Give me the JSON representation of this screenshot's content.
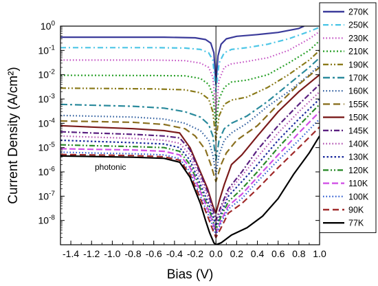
{
  "chart_data": {
    "type": "line",
    "title": "",
    "xlabel": "Bias (V)",
    "ylabel": "Current Density (A/cm²)",
    "xlim": [
      -1.5,
      1.0
    ],
    "ylim_log10": [
      -9,
      0
    ],
    "yscale": "log",
    "grid": false,
    "legend_placement": "right-outside",
    "x_ticks": [
      "-1.4",
      "-1.2",
      "-1.0",
      "-0.8",
      "-0.6",
      "-0.4",
      "-0.2",
      "0.0",
      "0.2",
      "0.4",
      "0.6",
      "0.8",
      "1.0"
    ],
    "annotation": "photonic",
    "series": [
      {
        "name": "270K",
        "color": "#3a3a9a",
        "dash": "",
        "points": [
          [
            -1.5,
            0.35
          ],
          [
            -0.5,
            0.35
          ],
          [
            -0.2,
            0.33
          ],
          [
            -0.1,
            0.28
          ],
          [
            -0.05,
            0.2
          ],
          [
            -0.02,
            0.08
          ],
          [
            0.0,
            0.004
          ],
          [
            0.02,
            0.06
          ],
          [
            0.05,
            0.18
          ],
          [
            0.1,
            0.3
          ],
          [
            0.2,
            0.38
          ],
          [
            0.4,
            0.45
          ],
          [
            0.6,
            0.55
          ],
          [
            0.8,
            0.8
          ],
          [
            0.85,
            1.0
          ]
        ]
      },
      {
        "name": "250K",
        "color": "#4cc6e6",
        "dash": "8,4,2,4",
        "points": [
          [
            -1.5,
            0.13
          ],
          [
            -0.6,
            0.13
          ],
          [
            -0.3,
            0.125
          ],
          [
            -0.15,
            0.11
          ],
          [
            -0.07,
            0.08
          ],
          [
            -0.03,
            0.04
          ],
          [
            0.0,
            0.002
          ],
          [
            0.03,
            0.03
          ],
          [
            0.08,
            0.08
          ],
          [
            0.15,
            0.11
          ],
          [
            0.3,
            0.13
          ],
          [
            0.5,
            0.18
          ],
          [
            0.7,
            0.3
          ],
          [
            0.9,
            0.6
          ],
          [
            1.0,
            0.9
          ]
        ]
      },
      {
        "name": "230K",
        "color": "#c34fc3",
        "dash": "1.5,3",
        "points": [
          [
            -1.5,
            0.04
          ],
          [
            -0.6,
            0.04
          ],
          [
            -0.3,
            0.038
          ],
          [
            -0.15,
            0.03
          ],
          [
            -0.07,
            0.02
          ],
          [
            -0.03,
            0.008
          ],
          [
            0.0,
            0.0003
          ],
          [
            0.03,
            0.006
          ],
          [
            0.08,
            0.02
          ],
          [
            0.15,
            0.028
          ],
          [
            0.3,
            0.035
          ],
          [
            0.5,
            0.05
          ],
          [
            0.7,
            0.1
          ],
          [
            0.9,
            0.3
          ],
          [
            1.0,
            0.6
          ]
        ]
      },
      {
        "name": "210K",
        "color": "#2aa12a",
        "dash": "2,3",
        "points": [
          [
            -1.5,
            0.0095
          ],
          [
            -0.6,
            0.0092
          ],
          [
            -0.3,
            0.009
          ],
          [
            -0.15,
            0.007
          ],
          [
            -0.07,
            0.004
          ],
          [
            -0.03,
            0.0015
          ],
          [
            0.0,
            8e-05
          ],
          [
            0.03,
            0.001
          ],
          [
            0.08,
            0.003
          ],
          [
            0.15,
            0.005
          ],
          [
            0.3,
            0.006
          ],
          [
            0.5,
            0.01
          ],
          [
            0.7,
            0.03
          ],
          [
            0.9,
            0.1
          ],
          [
            1.0,
            0.25
          ]
        ]
      },
      {
        "name": "190K",
        "color": "#8a7a1a",
        "dash": "8,3,2,3,2,3",
        "points": [
          [
            -1.5,
            0.0028
          ],
          [
            -0.6,
            0.0026
          ],
          [
            -0.3,
            0.0024
          ],
          [
            -0.15,
            0.0018
          ],
          [
            -0.07,
            0.001
          ],
          [
            -0.03,
            0.0003
          ],
          [
            0.0,
            2e-05
          ],
          [
            0.03,
            0.0002
          ],
          [
            0.08,
            0.0006
          ],
          [
            0.15,
            0.0009
          ],
          [
            0.3,
            0.0012
          ],
          [
            0.5,
            0.003
          ],
          [
            0.7,
            0.01
          ],
          [
            0.9,
            0.04
          ],
          [
            1.0,
            0.1
          ]
        ]
      },
      {
        "name": "170K",
        "color": "#2a8a9c",
        "dash": "10,4,3,4",
        "points": [
          [
            -1.5,
            0.0006
          ],
          [
            -0.8,
            0.0005
          ],
          [
            -0.5,
            0.00042
          ],
          [
            -0.3,
            0.0003
          ],
          [
            -0.15,
            0.00018
          ],
          [
            -0.07,
            9e-05
          ],
          [
            -0.03,
            3e-05
          ],
          [
            0.0,
            3e-06
          ],
          [
            0.03,
            2e-05
          ],
          [
            0.08,
            6e-05
          ],
          [
            0.15,
            0.0001
          ],
          [
            0.3,
            0.0002
          ],
          [
            0.5,
            0.0008
          ],
          [
            0.7,
            0.004
          ],
          [
            0.9,
            0.02
          ],
          [
            1.0,
            0.05
          ]
        ]
      },
      {
        "name": "160K",
        "color": "#2a5a9c",
        "dash": "1.5,3",
        "points": [
          [
            -1.5,
            0.00021
          ],
          [
            -0.8,
            0.00018
          ],
          [
            -0.5,
            0.00015
          ],
          [
            -0.3,
            0.0001
          ],
          [
            -0.15,
            5e-05
          ],
          [
            -0.07,
            2e-05
          ],
          [
            -0.03,
            5e-06
          ],
          [
            0.0,
            8e-07
          ],
          [
            0.03,
            5e-06
          ],
          [
            0.08,
            2e-05
          ],
          [
            0.15,
            4e-05
          ],
          [
            0.3,
            0.0001
          ],
          [
            0.5,
            0.0005
          ],
          [
            0.7,
            0.002
          ],
          [
            0.9,
            0.01
          ],
          [
            1.0,
            0.025
          ]
        ]
      },
      {
        "name": "155K",
        "color": "#8a7020",
        "dash": "10,5",
        "points": [
          [
            -1.5,
            0.000125
          ],
          [
            -0.8,
            0.00011
          ],
          [
            -0.5,
            9e-05
          ],
          [
            -0.3,
            6e-05
          ],
          [
            -0.2,
            3e-05
          ],
          [
            -0.1,
            8e-06
          ],
          [
            -0.05,
            2e-06
          ],
          [
            0.0,
            4e-07
          ],
          [
            0.05,
            2e-06
          ],
          [
            0.1,
            6e-06
          ],
          [
            0.2,
            2e-05
          ],
          [
            0.4,
            8e-05
          ],
          [
            0.6,
            0.0006
          ],
          [
            0.8,
            0.004
          ],
          [
            1.0,
            0.02
          ]
        ]
      },
      {
        "name": "150K",
        "color": "#7a1a1a",
        "dash": "",
        "points": [
          [
            -1.5,
            8e-05
          ],
          [
            -1.2,
            7e-05
          ],
          [
            -0.8,
            6e-05
          ],
          [
            -0.5,
            5e-05
          ],
          [
            -0.35,
            4e-05
          ],
          [
            -0.25,
            1e-05
          ],
          [
            -0.15,
            1e-06
          ],
          [
            -0.08,
            2e-07
          ],
          [
            -0.03,
            4e-08
          ],
          [
            0.0,
            2e-08
          ],
          [
            0.03,
            6e-08
          ],
          [
            0.08,
            3e-07
          ],
          [
            0.15,
            2e-06
          ],
          [
            0.25,
            5e-06
          ],
          [
            0.4,
            3e-05
          ],
          [
            0.6,
            0.0003
          ],
          [
            0.8,
            0.002
          ],
          [
            1.0,
            0.01
          ]
        ]
      },
      {
        "name": "145K",
        "color": "#5a2080",
        "dash": "8,3,2,3",
        "points": [
          [
            -1.5,
            4.5e-05
          ],
          [
            -1.2,
            4e-05
          ],
          [
            -0.8,
            3.5e-05
          ],
          [
            -0.5,
            3e-05
          ],
          [
            -0.35,
            2.5e-05
          ],
          [
            -0.25,
            8e-06
          ],
          [
            -0.15,
            8e-07
          ],
          [
            -0.08,
            1.5e-07
          ],
          [
            -0.03,
            3e-08
          ],
          [
            0.0,
            1e-08
          ],
          [
            0.05,
            4e-08
          ],
          [
            0.12,
            2e-07
          ],
          [
            0.25,
            1e-06
          ],
          [
            0.4,
            8e-06
          ],
          [
            0.6,
            8e-05
          ],
          [
            0.8,
            0.0006
          ],
          [
            1.0,
            0.004
          ]
        ]
      },
      {
        "name": "140K",
        "color": "#b04fb0",
        "dash": "1.5,3",
        "points": [
          [
            -1.5,
            3e-05
          ],
          [
            -1.2,
            2.7e-05
          ],
          [
            -0.8,
            2.4e-05
          ],
          [
            -0.5,
            2e-05
          ],
          [
            -0.35,
            1.5e-05
          ],
          [
            -0.25,
            5e-06
          ],
          [
            -0.15,
            5e-07
          ],
          [
            -0.08,
            1e-07
          ],
          [
            -0.03,
            2e-08
          ],
          [
            0.0,
            8e-09
          ],
          [
            0.05,
            3e-08
          ],
          [
            0.12,
            1.5e-07
          ],
          [
            0.25,
            7e-07
          ],
          [
            0.4,
            4e-06
          ],
          [
            0.6,
            4e-05
          ],
          [
            0.8,
            0.0003
          ],
          [
            1.0,
            0.002
          ]
        ]
      },
      {
        "name": "130K",
        "color": "#1a2a9c",
        "dash": "2.5,3",
        "points": [
          [
            -1.5,
            2e-05
          ],
          [
            -1.2,
            1.8e-05
          ],
          [
            -0.8,
            1.6e-05
          ],
          [
            -0.5,
            1.4e-05
          ],
          [
            -0.35,
            1e-05
          ],
          [
            -0.25,
            3e-06
          ],
          [
            -0.15,
            3e-07
          ],
          [
            -0.08,
            6e-08
          ],
          [
            -0.03,
            1.5e-08
          ],
          [
            0.0,
            6e-09
          ],
          [
            0.05,
            2e-08
          ],
          [
            0.12,
            1e-07
          ],
          [
            0.25,
            4e-07
          ],
          [
            0.4,
            2e-06
          ],
          [
            0.6,
            2e-05
          ],
          [
            0.8,
            0.00015
          ],
          [
            1.0,
            0.001
          ]
        ]
      },
      {
        "name": "120K",
        "color": "#2a8a2a",
        "dash": "8,3,2,3,2,3",
        "points": [
          [
            -1.5,
            1.3e-05
          ],
          [
            -1.2,
            1.2e-05
          ],
          [
            -0.8,
            1.1e-05
          ],
          [
            -0.5,
            1e-05
          ],
          [
            -0.35,
            7e-06
          ],
          [
            -0.25,
            2e-06
          ],
          [
            -0.15,
            2e-07
          ],
          [
            -0.08,
            4e-08
          ],
          [
            -0.03,
            1e-08
          ],
          [
            0.0,
            4e-09
          ],
          [
            0.05,
            1.5e-08
          ],
          [
            0.12,
            6e-08
          ],
          [
            0.25,
            2e-07
          ],
          [
            0.4,
            1e-06
          ],
          [
            0.6,
            1e-05
          ],
          [
            0.8,
            8e-05
          ],
          [
            1.0,
            0.0006
          ]
        ]
      },
      {
        "name": "110K",
        "color": "#d04fe6",
        "dash": "9,4",
        "points": [
          [
            -1.5,
            9e-06
          ],
          [
            -1.2,
            8.5e-06
          ],
          [
            -0.8,
            8e-06
          ],
          [
            -0.5,
            7e-06
          ],
          [
            -0.35,
            5e-06
          ],
          [
            -0.25,
            1.5e-06
          ],
          [
            -0.15,
            1.5e-07
          ],
          [
            -0.08,
            3e-08
          ],
          [
            -0.03,
            8e-09
          ],
          [
            0.0,
            3e-09
          ],
          [
            0.05,
            1e-08
          ],
          [
            0.12,
            4e-08
          ],
          [
            0.25,
            1.2e-07
          ],
          [
            0.4,
            6e-07
          ],
          [
            0.6,
            5e-06
          ],
          [
            0.8,
            4e-05
          ],
          [
            1.0,
            0.0003
          ]
        ]
      },
      {
        "name": "100K",
        "color": "#2a5ad0",
        "dash": "1.5,3",
        "points": [
          [
            -1.5,
            6.5e-06
          ],
          [
            -1.2,
            6e-06
          ],
          [
            -0.8,
            5.6e-06
          ],
          [
            -0.5,
            5e-06
          ],
          [
            -0.35,
            3.5e-06
          ],
          [
            -0.25,
            1e-06
          ],
          [
            -0.15,
            1e-07
          ],
          [
            -0.08,
            2e-08
          ],
          [
            -0.03,
            6e-09
          ],
          [
            0.0,
            2.5e-09
          ],
          [
            0.05,
            8e-09
          ],
          [
            0.12,
            3e-08
          ],
          [
            0.25,
            8e-08
          ],
          [
            0.4,
            4e-07
          ],
          [
            0.6,
            3e-06
          ],
          [
            0.8,
            2e-05
          ],
          [
            1.0,
            0.00015
          ]
        ]
      },
      {
        "name": "90K",
        "color": "#a02a2a",
        "dash": "9,5",
        "points": [
          [
            -1.5,
            5.2e-06
          ],
          [
            -1.2,
            5e-06
          ],
          [
            -0.8,
            4.7e-06
          ],
          [
            -0.5,
            4.2e-06
          ],
          [
            -0.35,
            3e-06
          ],
          [
            -0.25,
            8e-07
          ],
          [
            -0.15,
            8e-08
          ],
          [
            -0.08,
            1.5e-08
          ],
          [
            -0.03,
            4e-09
          ],
          [
            0.0,
            2e-09
          ],
          [
            0.05,
            5e-09
          ],
          [
            0.12,
            2e-08
          ],
          [
            0.25,
            5e-08
          ],
          [
            0.4,
            2e-07
          ],
          [
            0.6,
            1.5e-06
          ],
          [
            0.8,
            1e-05
          ],
          [
            1.0,
            7e-05
          ]
        ]
      },
      {
        "name": "77K",
        "color": "#000000",
        "dash": "",
        "points": [
          [
            -1.5,
            4.5e-06
          ],
          [
            -1.2,
            4.3e-06
          ],
          [
            -0.8,
            4e-06
          ],
          [
            -0.5,
            3.6e-06
          ],
          [
            -0.35,
            2.5e-06
          ],
          [
            -0.25,
            6e-07
          ],
          [
            -0.15,
            5e-08
          ],
          [
            -0.1,
            1e-08
          ],
          [
            -0.06,
            3e-09
          ],
          [
            -0.02,
            1.2e-09
          ],
          [
            0.0,
            1e-09
          ],
          [
            0.05,
            1.2e-09
          ],
          [
            0.15,
            2.5e-09
          ],
          [
            0.3,
            5e-09
          ],
          [
            0.45,
            1.5e-08
          ],
          [
            0.6,
            8e-08
          ],
          [
            0.75,
            8e-07
          ],
          [
            0.9,
            6e-06
          ],
          [
            1.0,
            3e-05
          ]
        ]
      }
    ]
  }
}
